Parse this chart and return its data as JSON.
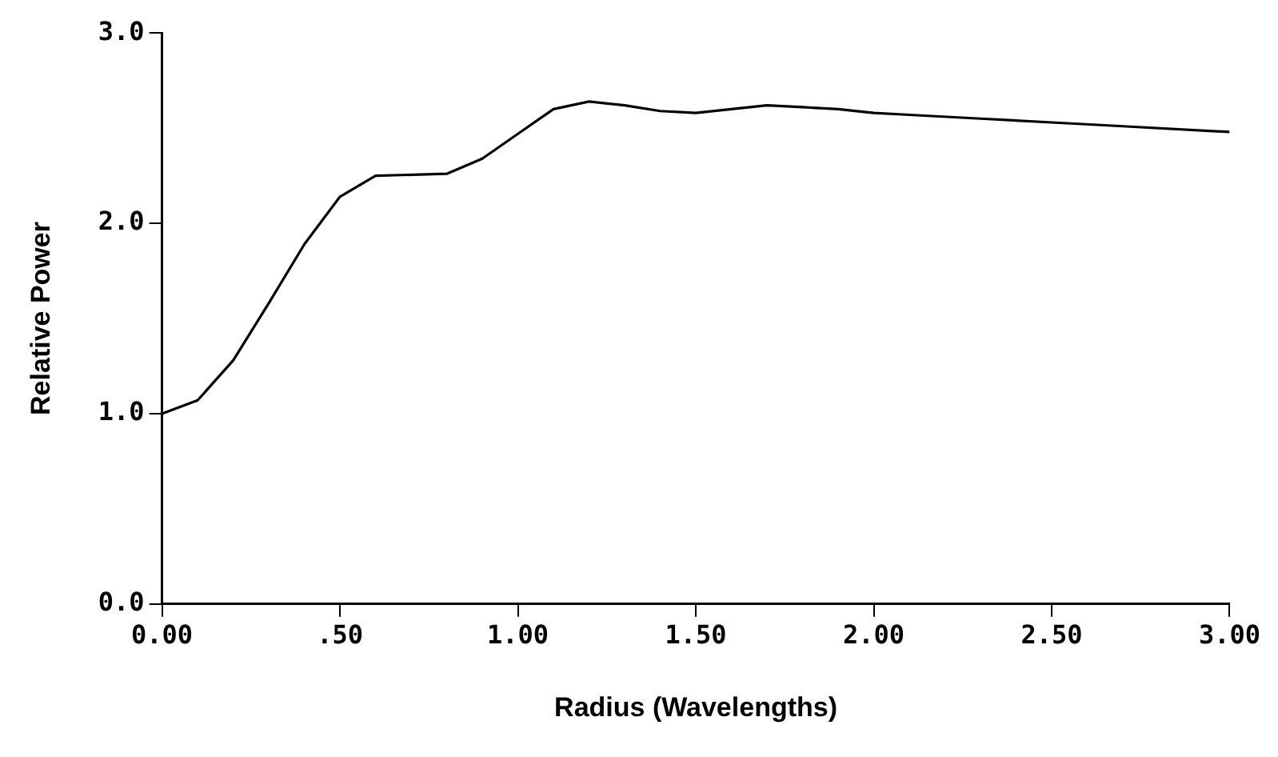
{
  "chart_data": {
    "type": "line",
    "xlabel": "Radius (Wavelengths)",
    "ylabel": "Relative Power",
    "x": [
      0,
      0.1,
      0.2,
      0.3,
      0.4,
      0.5,
      0.6,
      0.8,
      0.9,
      1.0,
      1.1,
      1.2,
      1.3,
      1.4,
      1.5,
      1.6,
      1.7,
      1.8,
      1.9,
      2.0,
      2.1,
      2.3,
      2.5,
      2.7,
      3.0
    ],
    "series": [
      {
        "color": "#000000",
        "values": [
          1.0,
          1.07,
          1.28,
          1.58,
          1.89,
          2.14,
          2.25,
          2.26,
          2.34,
          2.47,
          2.6,
          2.64,
          2.62,
          2.59,
          2.58,
          2.6,
          2.62,
          2.61,
          2.6,
          2.58,
          2.57,
          2.55,
          2.53,
          2.51,
          2.48
        ]
      }
    ],
    "xlim": [
      0,
      3
    ],
    "xticks": [
      {
        "value": 0,
        "label": "0.00"
      },
      {
        "value": 0.5,
        "label": ".50"
      },
      {
        "value": 1,
        "label": "1.00"
      },
      {
        "value": 1.5,
        "label": "1.50"
      },
      {
        "value": 2,
        "label": "2.00"
      },
      {
        "value": 2.5,
        "label": "2.50"
      },
      {
        "value": 3,
        "label": "3.00"
      }
    ],
    "ylim": [
      0,
      3
    ],
    "yticks": [
      {
        "value": 0,
        "label": "0.0"
      },
      {
        "value": 1,
        "label": "1.0"
      },
      {
        "value": 2,
        "label": "2.0"
      },
      {
        "value": 3,
        "label": "3.0"
      }
    ],
    "grid": false,
    "legend": false,
    "marker": "none",
    "line_style": "solid"
  }
}
